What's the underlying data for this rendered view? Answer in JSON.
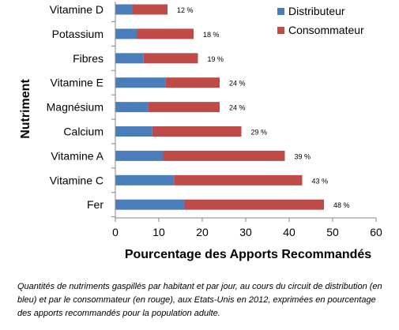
{
  "chart_data": {
    "type": "bar",
    "orientation": "horizontal",
    "stacked": true,
    "categories": [
      "Vitamine D",
      "Potassium",
      "Fibres",
      "Vitamine E",
      "Magnésium",
      "Calcium",
      "Vitamine A",
      "Vitamine C",
      "Fer"
    ],
    "series": [
      {
        "name": "Distributeur",
        "color": "#4a7ebb",
        "values": [
          4,
          5,
          6.5,
          11.5,
          7.5,
          8.5,
          11,
          13.5,
          16
        ]
      },
      {
        "name": "Consommateur",
        "color": "#be4b48",
        "values": [
          8,
          13,
          12.5,
          12.5,
          16.5,
          20.5,
          28,
          29.5,
          32
        ]
      }
    ],
    "totals_labels": [
      "12 %",
      "18 %",
      "19 %",
      "24 %",
      "24 %",
      "29 %",
      "39 %",
      "43 %",
      "48 %"
    ],
    "xlabel": "Pourcentage des Apports Recommandés",
    "ylabel": "Nutriment",
    "xlim": [
      0,
      60
    ],
    "xticks": [
      "0",
      "10",
      "20",
      "30",
      "40",
      "50",
      "60"
    ],
    "grid": false,
    "legend_position": "top-right"
  },
  "caption": "Quantités de nutriments  gaspillés par habitant et par jour, au cours du circuit de distribution (en bleu) et par le consommateur  (en rouge), aux Etats-Unis en 2012, exprimées  en pourcentage des apports recommandés  pour la population adulte."
}
